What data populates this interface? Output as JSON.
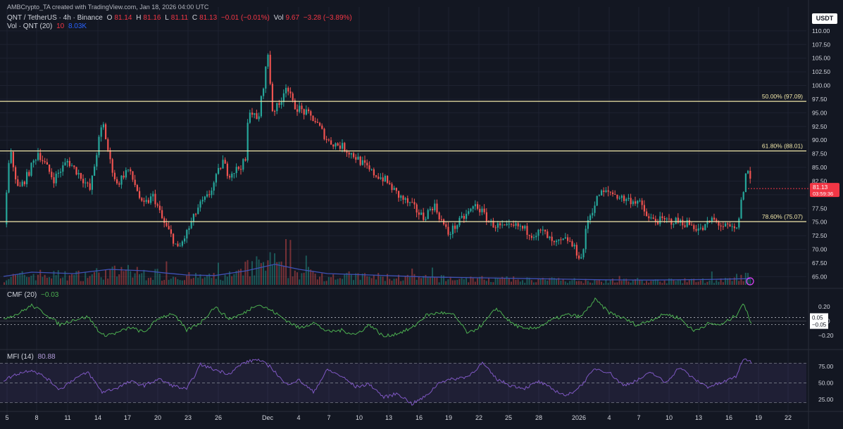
{
  "header": {
    "credit": "AMBCrypto_TA created with TradingView.com, Jan 18, 2026 04:00 UTC",
    "symbol": "QNT / TetherUS · 4h · Binance",
    "o_label": "O",
    "o": "81.14",
    "h_label": "H",
    "h": "81.16",
    "l_label": "L",
    "l": "81.11",
    "c_label": "C",
    "c": "81.13",
    "change": "−0.01 (−0.01%)",
    "vol_label": "Vol",
    "vol": "9.67",
    "vol_change": "−3.28 (−3.89%)",
    "vol_indicator": "Vol · QNT (20)",
    "vol_v1": "10",
    "vol_v2": "8.03K",
    "cmf_label": "CMF (20)",
    "cmf_value": "−0.03",
    "mfi_label": "MFI (14)",
    "mfi_value": "80.88"
  },
  "currency": "USDT",
  "colors": {
    "bg": "#131722",
    "up": "#26a69a",
    "down": "#ef5350",
    "fib": "#f0e6a8",
    "vol_ma": "#3f51b5",
    "cmf": "#4caf50",
    "mfi": "#7e57c2",
    "price_tag": "#f23645"
  },
  "price_tag": {
    "price": "81.13",
    "countdown": "03:59:36"
  },
  "chart_data": [
    {
      "type": "candlestick",
      "ylim": [
        63.5,
        110.5
      ],
      "y_ticks": [
        "110.00",
        "107.50",
        "105.00",
        "102.50",
        "100.00",
        "97.50",
        "95.00",
        "92.50",
        "90.00",
        "87.50",
        "85.00",
        "82.50",
        "80.00",
        "77.50",
        "75.00",
        "72.50",
        "70.00",
        "67.50",
        "65.00"
      ],
      "x_ticks": [
        "5",
        "8",
        "11",
        "14",
        "17",
        "20",
        "23",
        "26",
        "Dec",
        "4",
        "7",
        "10",
        "13",
        "16",
        "19",
        "22",
        "25",
        "28",
        "2026",
        "4",
        "7",
        "10",
        "13",
        "16",
        "19",
        "22"
      ],
      "close_path": [
        [
          0,
          74.6
        ],
        [
          8,
          88.2
        ],
        [
          20,
          80.8
        ],
        [
          33,
          83.6
        ],
        [
          48,
          87.8
        ],
        [
          70,
          82.8
        ],
        [
          90,
          86.2
        ],
        [
          110,
          83.2
        ],
        [
          122,
          80.8
        ],
        [
          134,
          89.8
        ],
        [
          140,
          93.2
        ],
        [
          150,
          86.2
        ],
        [
          160,
          81.8
        ],
        [
          175,
          84.8
        ],
        [
          188,
          81.2
        ],
        [
          196,
          77.8
        ],
        [
          212,
          79.8
        ],
        [
          225,
          75.2
        ],
        [
          240,
          71.8
        ],
        [
          247,
          69.8
        ],
        [
          262,
          73.8
        ],
        [
          276,
          77.8
        ],
        [
          290,
          79.8
        ],
        [
          300,
          82.8
        ],
        [
          310,
          86.2
        ],
        [
          318,
          83.8
        ],
        [
          332,
          84.8
        ],
        [
          343,
          86.2
        ],
        [
          347,
          96.2
        ],
        [
          360,
          93.2
        ],
        [
          368,
          100.2
        ],
        [
          375,
          106.2
        ],
        [
          380,
          95.5
        ],
        [
          390,
          96.2
        ],
        [
          400,
          100.2
        ],
        [
          410,
          96.5
        ],
        [
          425,
          95.2
        ],
        [
          440,
          93.8
        ],
        [
          460,
          89.8
        ],
        [
          480,
          88.8
        ],
        [
          500,
          86.8
        ],
        [
          520,
          84.2
        ],
        [
          540,
          82.8
        ],
        [
          560,
          79.8
        ],
        [
          580,
          77.8
        ],
        [
          595,
          75.8
        ],
        [
          610,
          78.2
        ],
        [
          630,
          72.8
        ],
        [
          650,
          75.5
        ],
        [
          670,
          78.2
        ],
        [
          690,
          74.8
        ],
        [
          710,
          73.8
        ],
        [
          730,
          74.2
        ],
        [
          750,
          72.8
        ],
        [
          765,
          73.2
        ],
        [
          780,
          70.8
        ],
        [
          800,
          71.8
        ],
        [
          820,
          68.2
        ],
        [
          828,
          75.2
        ],
        [
          845,
          80.2
        ],
        [
          860,
          80.5
        ],
        [
          880,
          79.2
        ],
        [
          900,
          78.8
        ],
        [
          915,
          75.5
        ],
        [
          935,
          75.2
        ],
        [
          950,
          75.2
        ],
        [
          970,
          74.8
        ],
        [
          990,
          73.5
        ],
        [
          1005,
          75.5
        ],
        [
          1020,
          74.2
        ],
        [
          1040,
          73.5
        ],
        [
          1048,
          79.8
        ],
        [
          1055,
          85.2
        ],
        [
          1062,
          81.13
        ]
      ],
      "fib_levels": [
        {
          "label": "50.00% (97.09)",
          "value": 97.09
        },
        {
          "label": "61.80% (88.01)",
          "value": 88.01
        },
        {
          "label": "78.60% (75.07)",
          "value": 75.07
        }
      ],
      "volume_ma_path": [
        [
          0,
          0.3
        ],
        [
          40,
          0.45
        ],
        [
          100,
          0.4
        ],
        [
          150,
          0.55
        ],
        [
          200,
          0.5
        ],
        [
          230,
          0.42
        ],
        [
          260,
          0.35
        ],
        [
          300,
          0.33
        ],
        [
          345,
          0.5
        ],
        [
          385,
          0.73
        ],
        [
          420,
          0.55
        ],
        [
          460,
          0.4
        ],
        [
          520,
          0.35
        ],
        [
          600,
          0.28
        ],
        [
          700,
          0.24
        ],
        [
          800,
          0.2
        ],
        [
          850,
          0.18
        ],
        [
          920,
          0.17
        ],
        [
          1000,
          0.19
        ],
        [
          1060,
          0.22
        ]
      ]
    },
    {
      "type": "line",
      "name": "CMF (20)",
      "ylim": [
        -0.33,
        0.36
      ],
      "y_ticks": [
        "0.20",
        "0.00",
        "−0.20"
      ],
      "current": "−0.03",
      "marker_values": [
        0.05,
        -0.05
      ],
      "marker_labels": [
        "0.05",
        "−0.05"
      ],
      "path": [
        [
          0,
          0.04
        ],
        [
          20,
          0.1
        ],
        [
          40,
          0.22
        ],
        [
          60,
          0.1
        ],
        [
          80,
          -0.05
        ],
        [
          100,
          0.02
        ],
        [
          120,
          0.06
        ],
        [
          140,
          -0.2
        ],
        [
          160,
          -0.17
        ],
        [
          180,
          -0.09
        ],
        [
          200,
          -0.16
        ],
        [
          220,
          0.04
        ],
        [
          240,
          0.11
        ],
        [
          260,
          -0.13
        ],
        [
          280,
          -0.02
        ],
        [
          300,
          0.2
        ],
        [
          320,
          0.03
        ],
        [
          340,
          0.1
        ],
        [
          360,
          0.24
        ],
        [
          380,
          0.15
        ],
        [
          400,
          0.02
        ],
        [
          420,
          -0.1
        ],
        [
          440,
          -0.02
        ],
        [
          460,
          -0.15
        ],
        [
          480,
          -0.13
        ],
        [
          500,
          -0.19
        ],
        [
          520,
          -0.05
        ],
        [
          540,
          -0.22
        ],
        [
          560,
          -0.17
        ],
        [
          580,
          -0.1
        ],
        [
          600,
          0.08
        ],
        [
          620,
          0.12
        ],
        [
          640,
          0.08
        ],
        [
          660,
          -0.18
        ],
        [
          680,
          -0.05
        ],
        [
          700,
          0.18
        ],
        [
          720,
          -0.02
        ],
        [
          740,
          -0.12
        ],
        [
          760,
          -0.08
        ],
        [
          780,
          0.02
        ],
        [
          800,
          0.09
        ],
        [
          820,
          0.06
        ],
        [
          840,
          0.3
        ],
        [
          860,
          0.12
        ],
        [
          880,
          0.04
        ],
        [
          900,
          -0.06
        ],
        [
          920,
          0.02
        ],
        [
          940,
          0.1
        ],
        [
          960,
          0.04
        ],
        [
          980,
          -0.14
        ],
        [
          1000,
          -0.04
        ],
        [
          1020,
          -0.05
        ],
        [
          1040,
          0.08
        ],
        [
          1050,
          0.25
        ],
        [
          1062,
          -0.03
        ]
      ]
    },
    {
      "type": "line",
      "name": "MFI (14)",
      "ylim": [
        12,
        90
      ],
      "y_ticks": [
        "75.00",
        "50.00",
        "25.00"
      ],
      "current": "80.88",
      "band": [
        20,
        80
      ],
      "path": [
        [
          0,
          54
        ],
        [
          20,
          64
        ],
        [
          40,
          70
        ],
        [
          60,
          58
        ],
        [
          80,
          40
        ],
        [
          100,
          56
        ],
        [
          120,
          66
        ],
        [
          140,
          36
        ],
        [
          160,
          42
        ],
        [
          180,
          52
        ],
        [
          200,
          46
        ],
        [
          220,
          56
        ],
        [
          240,
          46
        ],
        [
          260,
          40
        ],
        [
          280,
          78
        ],
        [
          300,
          70
        ],
        [
          320,
          64
        ],
        [
          340,
          80
        ],
        [
          360,
          86
        ],
        [
          380,
          74
        ],
        [
          400,
          48
        ],
        [
          420,
          54
        ],
        [
          440,
          36
        ],
        [
          460,
          70
        ],
        [
          480,
          60
        ],
        [
          500,
          44
        ],
        [
          520,
          48
        ],
        [
          540,
          28
        ],
        [
          560,
          34
        ],
        [
          580,
          18
        ],
        [
          600,
          30
        ],
        [
          620,
          52
        ],
        [
          640,
          56
        ],
        [
          660,
          60
        ],
        [
          680,
          80
        ],
        [
          700,
          56
        ],
        [
          720,
          46
        ],
        [
          740,
          42
        ],
        [
          760,
          52
        ],
        [
          780,
          40
        ],
        [
          800,
          30
        ],
        [
          820,
          46
        ],
        [
          840,
          72
        ],
        [
          860,
          66
        ],
        [
          880,
          46
        ],
        [
          900,
          54
        ],
        [
          920,
          66
        ],
        [
          940,
          50
        ],
        [
          960,
          74
        ],
        [
          980,
          56
        ],
        [
          1000,
          44
        ],
        [
          1020,
          50
        ],
        [
          1040,
          60
        ],
        [
          1052,
          88
        ],
        [
          1062,
          80.88
        ]
      ]
    }
  ]
}
